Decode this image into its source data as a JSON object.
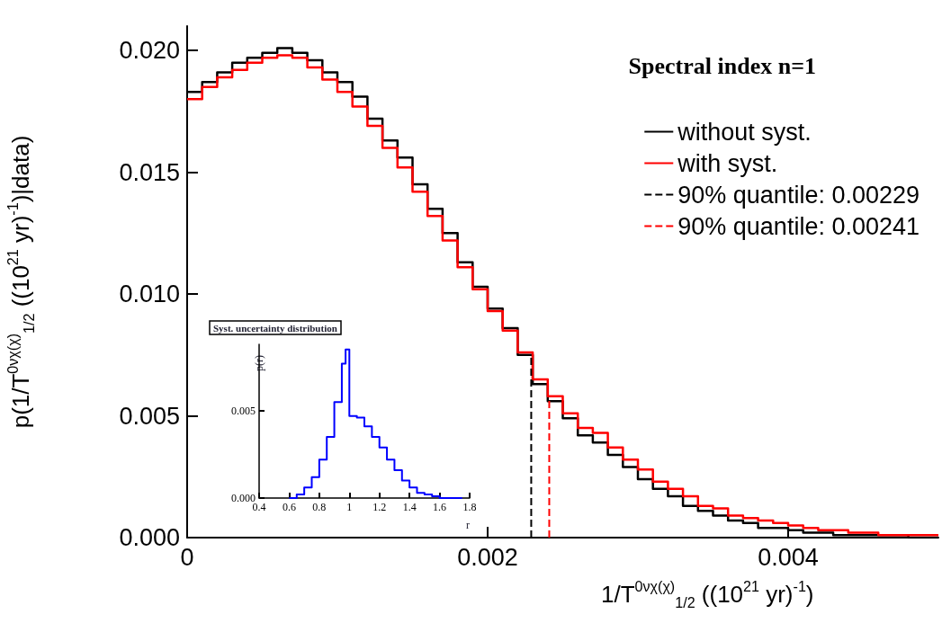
{
  "chart_data": [
    {
      "type": "step",
      "legend_title": "Spectral index n=1",
      "xlabel": "1/T$^{0νχ(χ)}$$_{1/2}$ ((10$^{21}$ yr)$^{-1}$)",
      "ylabel": "p(1/T$^{0νχ(χ)}$$_{1/2}$ ((10$^{21}$ yr)$^{-1}$)|data)",
      "x": [
        0,
        0.0001,
        0.0002,
        0.0003,
        0.0004,
        0.0005,
        0.0006,
        0.0007,
        0.0008,
        0.0009,
        0.001,
        0.0011,
        0.0012,
        0.0013,
        0.0014,
        0.0015,
        0.0016,
        0.0017,
        0.0018,
        0.0019,
        0.002,
        0.0021,
        0.0022,
        0.0023,
        0.0024,
        0.0025,
        0.0026,
        0.0027,
        0.0028,
        0.0029,
        0.003,
        0.0031,
        0.0032,
        0.0033,
        0.0034,
        0.0035,
        0.0036,
        0.0037,
        0.0038,
        0.0039,
        0.004,
        0.0041,
        0.0042,
        0.0043,
        0.0044,
        0.0045,
        0.0046,
        0.0047,
        0.0048,
        0.0049,
        0.005
      ],
      "series": [
        {
          "name": "without syst.",
          "color": "#000000",
          "values": [
            0.0183,
            0.0187,
            0.0191,
            0.0195,
            0.0197,
            0.0199,
            0.0201,
            0.0199,
            0.0196,
            0.0191,
            0.0187,
            0.0181,
            0.0172,
            0.0163,
            0.0156,
            0.0145,
            0.0135,
            0.0125,
            0.0113,
            0.0103,
            0.0094,
            0.0086,
            0.0075,
            0.0063,
            0.0056,
            0.0049,
            0.0042,
            0.0039,
            0.0034,
            0.0029,
            0.0024,
            0.002,
            0.0017,
            0.0013,
            0.0011,
            0.0009,
            0.0007,
            0.0006,
            0.0004,
            0.0004,
            0.0003,
            0.0002,
            0.0002,
            0.0001,
            0.0001,
            0.0001,
            0.0001,
            0.0001,
            0,
            0,
            0
          ]
        },
        {
          "name": "with syst.",
          "color": "#ff0000",
          "values": [
            0.018,
            0.0185,
            0.0189,
            0.0192,
            0.0195,
            0.0197,
            0.0198,
            0.0197,
            0.0193,
            0.0188,
            0.0183,
            0.0177,
            0.0169,
            0.016,
            0.0152,
            0.0142,
            0.0132,
            0.0122,
            0.0111,
            0.0102,
            0.0093,
            0.0085,
            0.0076,
            0.0065,
            0.0058,
            0.0051,
            0.0045,
            0.0043,
            0.0037,
            0.0032,
            0.0028,
            0.0023,
            0.002,
            0.0017,
            0.0013,
            0.0012,
            0.0009,
            0.0008,
            0.0007,
            0.0006,
            0.0005,
            0.0004,
            0.0003,
            0.0003,
            0.0002,
            0.0002,
            0.0001,
            0.0001,
            0.0001,
            0.0001,
            0.0001
          ]
        }
      ],
      "ref_lines": [
        {
          "axis": "x",
          "value": 0.00229,
          "label": "90% quantile: 0.00229",
          "color": "#000000",
          "line_style": "dashed"
        },
        {
          "axis": "x",
          "value": 0.00241,
          "label": "90% quantile: 0.00241",
          "color": "#ff0000",
          "line_style": "dashed"
        }
      ],
      "xlim": [
        0,
        0.005
      ],
      "xticks": [
        0,
        0.002,
        0.004
      ],
      "ylim": [
        0,
        0.021
      ],
      "yticks": [
        {
          "value": 0,
          "label": "0.000"
        },
        {
          "value": 0.005,
          "label": "0.005"
        },
        {
          "value": 0.01,
          "label": "0.010"
        },
        {
          "value": 0.015,
          "label": "0.015"
        },
        {
          "value": 0.02,
          "label": "0.020"
        }
      ],
      "grid": false,
      "legend": "top right"
    },
    {
      "type": "step",
      "title": "Syst. uncertainty distribution",
      "xlabel": "r",
      "ylabel": "p(r)",
      "x": [
        0.6,
        0.65,
        0.7,
        0.75,
        0.8,
        0.85,
        0.9,
        0.95,
        0.975,
        1.0,
        1.05,
        1.1,
        1.15,
        1.2,
        1.25,
        1.3,
        1.35,
        1.4,
        1.45,
        1.5,
        1.55,
        1.6,
        1.75
      ],
      "series": [
        {
          "color": "#0000ff",
          "values": [
            0,
            0.0002,
            0.0006,
            0.0012,
            0.0022,
            0.0035,
            0.0055,
            0.0077,
            0.0085,
            0.0047,
            0.0046,
            0.0041,
            0.0035,
            0.0029,
            0.0022,
            0.0016,
            0.001,
            0.0006,
            0.0003,
            0.0002,
            0.0001,
            0,
            0
          ]
        }
      ],
      "xlim": [
        0.4,
        1.8
      ],
      "xticks": [
        0.4,
        0.6,
        0.8,
        1,
        1.2,
        1.4,
        1.6,
        1.8
      ],
      "ylim": [
        0,
        0.0088
      ],
      "yticks": [
        {
          "value": 0,
          "label": "0.000"
        },
        {
          "value": 0.005,
          "label": "0.005"
        }
      ],
      "grid": false,
      "legend": false
    }
  ]
}
